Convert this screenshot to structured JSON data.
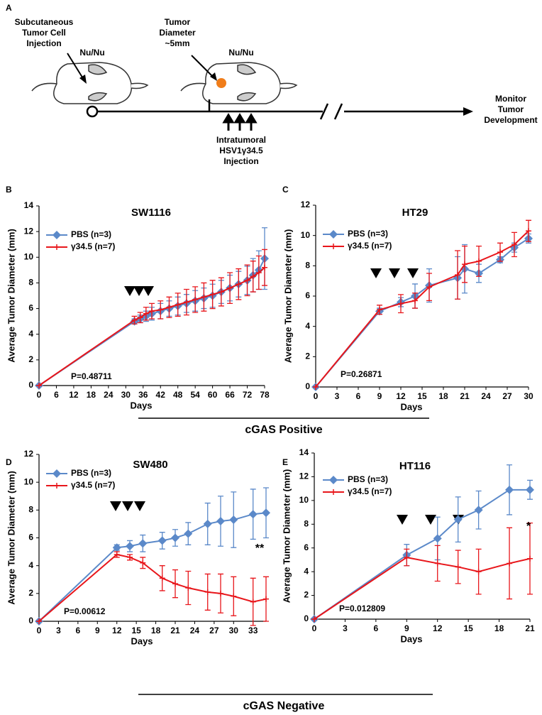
{
  "diagram": {
    "panel": "A",
    "injection_label": [
      "Subcutaneous",
      "Tumor Cell",
      "Injection"
    ],
    "mouse_label_1": "Nu/Nu",
    "tumor_label": [
      "Tumor",
      "Diameter",
      "~5mm"
    ],
    "mouse_label_2": "Nu/Nu",
    "treatment_label": [
      "Intratumoral",
      "HSV1γ34.5",
      "Injection"
    ],
    "monitor_label": [
      "Monitor",
      "Tumor",
      "Development"
    ]
  },
  "groups": [
    "cGAS Positive",
    "cGAS Negative"
  ],
  "chart_data": [
    {
      "type": "line",
      "panel": "B",
      "title": "SW1116",
      "x_label": "Days",
      "y_label": "Average Tumor Diameter (mm)",
      "annotation": "P=0.48711",
      "x": [
        0,
        33,
        35,
        37,
        39,
        42,
        45,
        48,
        51,
        54,
        57,
        60,
        63,
        66,
        69,
        72,
        74,
        76,
        78
      ],
      "series": [
        {
          "name": "PBS (n=3)",
          "color": "#5b89c9",
          "marker": "diamond",
          "values": [
            0,
            5.0,
            5.2,
            5.4,
            5.6,
            5.8,
            6.0,
            6.2,
            6.4,
            6.6,
            6.8,
            7.0,
            7.3,
            7.6,
            7.9,
            8.2,
            8.6,
            9.0,
            9.9
          ],
          "errors": [
            0,
            0.2,
            0.3,
            0.4,
            0.5,
            0.6,
            0.6,
            0.7,
            0.7,
            0.8,
            0.8,
            0.9,
            0.9,
            1.0,
            1.0,
            1.1,
            1.3,
            1.5,
            2.4
          ]
        },
        {
          "name": "γ34.5 (n=7)",
          "color": "#e8161b",
          "marker": "plus",
          "values": [
            0,
            5.1,
            5.3,
            5.6,
            5.8,
            5.9,
            6.1,
            6.3,
            6.5,
            6.7,
            6.9,
            7.1,
            7.3,
            7.6,
            7.9,
            8.2,
            8.5,
            8.8,
            9.2
          ],
          "errors": [
            0,
            0.3,
            0.4,
            0.5,
            0.6,
            0.7,
            0.8,
            0.9,
            1.0,
            1.0,
            1.1,
            1.1,
            1.1,
            1.2,
            1.2,
            1.2,
            1.2,
            1.3,
            1.4
          ]
        }
      ],
      "xlim": [
        0,
        78
      ],
      "xticks": [
        0,
        6,
        12,
        18,
        24,
        30,
        36,
        42,
        48,
        54,
        60,
        66,
        72,
        78
      ],
      "ylim": [
        0,
        14
      ],
      "yticks": [
        0,
        2,
        4,
        6,
        8,
        10,
        12,
        14
      ]
    },
    {
      "type": "line",
      "panel": "C",
      "title": "HT29",
      "x_label": "Days",
      "y_label": "Average Tumor Diameter (mm)",
      "annotation": "P=0.26871",
      "x": [
        0,
        9,
        12,
        14,
        16,
        20,
        21,
        23,
        26,
        28,
        30
      ],
      "series": [
        {
          "name": "PBS (n=3)",
          "color": "#5b89c9",
          "marker": "diamond",
          "values": [
            0,
            5.0,
            5.6,
            6.0,
            6.7,
            7.2,
            7.8,
            7.5,
            8.4,
            9.2,
            9.8
          ],
          "errors": [
            0,
            0.2,
            0.3,
            0.8,
            1.1,
            1.4,
            1.6,
            0.6,
            0.2,
            0.3,
            0.3
          ]
        },
        {
          "name": "γ34.5 (n=7)",
          "color": "#e8161b",
          "marker": "plus",
          "values": [
            0,
            5.1,
            5.5,
            5.7,
            6.6,
            7.4,
            8.1,
            8.3,
            8.9,
            9.4,
            10.3
          ],
          "errors": [
            0,
            0.3,
            0.6,
            0.5,
            0.9,
            1.6,
            1.2,
            1.0,
            0.6,
            0.8,
            0.7
          ]
        }
      ],
      "xlim": [
        0,
        30
      ],
      "xticks": [
        0,
        3,
        6,
        9,
        12,
        15,
        18,
        21,
        24,
        27,
        30
      ],
      "ylim": [
        0,
        12
      ],
      "yticks": [
        0,
        2,
        4,
        6,
        8,
        10,
        12
      ]
    },
    {
      "type": "line",
      "panel": "D",
      "title": "SW480",
      "x_label": "Days",
      "y_label": "Average Tumor Diameter (mm)",
      "annotation": "P=0.00612",
      "significance": "**",
      "x": [
        0,
        12,
        14,
        16,
        19,
        21,
        23,
        26,
        28,
        30,
        33,
        35
      ],
      "series": [
        {
          "name": "PBS (n=3)",
          "color": "#5b89c9",
          "marker": "diamond",
          "values": [
            0,
            5.3,
            5.4,
            5.6,
            5.8,
            6.0,
            6.3,
            7.0,
            7.2,
            7.3,
            7.7,
            7.8
          ],
          "errors": [
            0,
            0.2,
            0.4,
            0.6,
            0.6,
            0.6,
            0.8,
            1.5,
            1.8,
            2.0,
            1.8,
            1.8
          ]
        },
        {
          "name": "γ34.5 (n=7)",
          "color": "#e8161b",
          "marker": "plus",
          "values": [
            0,
            4.8,
            4.6,
            4.2,
            3.1,
            2.7,
            2.4,
            2.1,
            2.0,
            1.8,
            1.4,
            1.6
          ],
          "errors": [
            0,
            0.2,
            0.2,
            0.4,
            0.9,
            1.0,
            1.2,
            1.3,
            1.4,
            1.4,
            1.7,
            1.6
          ]
        }
      ],
      "xlim": [
        0,
        35
      ],
      "xticks": [
        0,
        3,
        6,
        9,
        12,
        15,
        18,
        21,
        24,
        27,
        30,
        33
      ],
      "ylim": [
        0,
        12
      ],
      "yticks": [
        0,
        2,
        4,
        6,
        8,
        10,
        12
      ]
    },
    {
      "type": "line",
      "panel": "E",
      "title": "HT116",
      "x_label": "Days",
      "y_label": "Average Tumor Diameter (mm)",
      "annotation": "P=0.012809",
      "significance": "*",
      "x": [
        0,
        9,
        12,
        14,
        16,
        19,
        21
      ],
      "series": [
        {
          "name": "PBS (n=3)",
          "color": "#5b89c9",
          "marker": "diamond",
          "values": [
            0,
            5.4,
            6.8,
            8.4,
            9.2,
            10.9,
            10.9
          ],
          "errors": [
            0,
            0.9,
            1.8,
            1.9,
            1.6,
            2.1,
            0.8
          ]
        },
        {
          "name": "γ34.5 (n=7)",
          "color": "#e8161b",
          "marker": "plus",
          "values": [
            0,
            5.2,
            4.7,
            4.4,
            4.0,
            4.7,
            5.1
          ],
          "errors": [
            0,
            0.7,
            1.5,
            1.4,
            1.9,
            3.0,
            3.0
          ]
        }
      ],
      "xlim": [
        0,
        21
      ],
      "xticks": [
        0,
        3,
        6,
        9,
        12,
        15,
        18,
        21
      ],
      "ylim": [
        0,
        14
      ],
      "yticks": [
        0,
        2,
        4,
        6,
        8,
        10,
        12,
        14
      ]
    }
  ]
}
